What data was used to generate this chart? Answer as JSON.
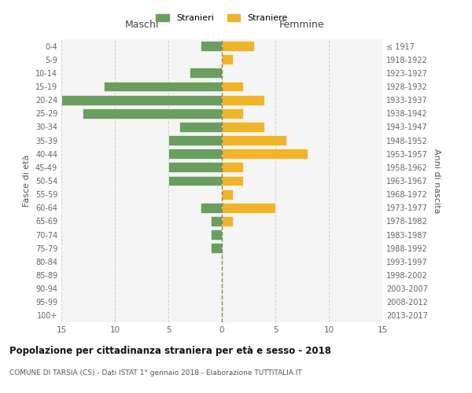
{
  "age_groups": [
    "0-4",
    "5-9",
    "10-14",
    "15-19",
    "20-24",
    "25-29",
    "30-34",
    "35-39",
    "40-44",
    "45-49",
    "50-54",
    "55-59",
    "60-64",
    "65-69",
    "70-74",
    "75-79",
    "80-84",
    "85-89",
    "90-94",
    "95-99",
    "100+"
  ],
  "birth_years": [
    "2013-2017",
    "2008-2012",
    "2003-2007",
    "1998-2002",
    "1993-1997",
    "1988-1992",
    "1983-1987",
    "1978-1982",
    "1973-1977",
    "1968-1972",
    "1963-1967",
    "1958-1962",
    "1953-1957",
    "1948-1952",
    "1943-1947",
    "1938-1942",
    "1933-1937",
    "1928-1932",
    "1923-1927",
    "1918-1922",
    "≤ 1917"
  ],
  "maschi": [
    2,
    0,
    3,
    11,
    15,
    13,
    4,
    5,
    5,
    5,
    5,
    0,
    2,
    1,
    1,
    1,
    0,
    0,
    0,
    0,
    0
  ],
  "femmine": [
    3,
    1,
    0,
    2,
    4,
    2,
    4,
    6,
    8,
    2,
    2,
    1,
    5,
    1,
    0,
    0,
    0,
    0,
    0,
    0,
    0
  ],
  "male_color": "#6a9e5f",
  "female_color": "#f0b429",
  "dashed_line_color": "#888855",
  "grid_color": "#cccccc",
  "title": "Popolazione per cittadinanza straniera per età e sesso - 2018",
  "subtitle": "COMUNE DI TARSIA (CS) - Dati ISTAT 1° gennaio 2018 - Elaborazione TUTTITALIA.IT",
  "ylabel_left": "Fasce di età",
  "ylabel_right": "Anni di nascita",
  "xlabel_left": "Maschi",
  "xlabel_right": "Femmine",
  "legend_stranieri": "Stranieri",
  "legend_straniere": "Straniere",
  "xlim": 15,
  "background_color": "#ffffff",
  "plot_bg_color": "#f5f5f5"
}
